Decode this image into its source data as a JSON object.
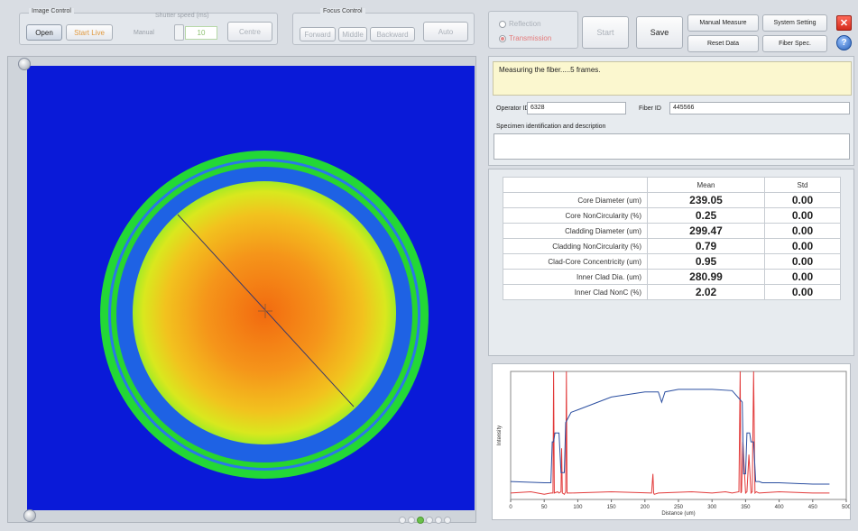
{
  "image_control": {
    "title": "Image Control",
    "shutter_label": "Shutter speed (ms)",
    "open_label": "Open",
    "start_live_label": "Start Live",
    "manual_label": "Manual",
    "shutter_value": "10",
    "centre_label": "Centre"
  },
  "focus_control": {
    "title": "Focus Control",
    "forward_label": "Forward",
    "middle_label": "Middle",
    "backward_label": "Backward",
    "auto_label": "Auto"
  },
  "mode": {
    "reflection_label": "Reflection",
    "transmission_label": "Transmission",
    "selected": "Transmission"
  },
  "actions": {
    "start_label": "Start",
    "save_label": "Save",
    "manual_measure_label": "Manual Measure",
    "system_setting_label": "System Setting",
    "reset_data_label": "Reset Data",
    "fiber_spec_label": "Fiber Spec.",
    "close_symbol": "✕",
    "help_symbol": "?"
  },
  "status": {
    "message": "Measuring the fiber.....5 frames."
  },
  "ids": {
    "operator_label": "Operator ID",
    "operator_value": "6328",
    "fiber_label": "Fiber ID",
    "fiber_value": "445566",
    "specimen_label": "Specimen identification and description",
    "specimen_value": ""
  },
  "results": {
    "headers": [
      "Mean",
      "Std"
    ],
    "rows": [
      {
        "name": "Core Diameter (um)",
        "mean": "239.05",
        "std": "0.00"
      },
      {
        "name": "Core NonCircularity (%)",
        "mean": "0.25",
        "std": "0.00"
      },
      {
        "name": "Cladding Diameter (um)",
        "mean": "299.47",
        "std": "0.00"
      },
      {
        "name": "Cladding NonCircularity (%)",
        "mean": "0.79",
        "std": "0.00"
      },
      {
        "name": "Clad-Core Concentricity (um)",
        "mean": "0.95",
        "std": "0.00"
      },
      {
        "name": "Inner Clad Dia. (um)",
        "mean": "280.99",
        "std": "0.00"
      },
      {
        "name": "Inner Clad NonC (%)",
        "mean": "2.02",
        "std": "0.00"
      }
    ]
  },
  "colors": {
    "background": "#0a1ad8",
    "outer_ring": "#23d836",
    "core_center": "#f26a10",
    "profile_blue": "#2a4ea0",
    "profile_red": "#e23b3b"
  },
  "pager": {
    "count": 6,
    "active": 2
  },
  "chart_data": {
    "type": "line",
    "xlabel": "Distance (um)",
    "ylabel": "Intensity",
    "xlim": [
      0,
      500
    ],
    "ylim": [
      0,
      1
    ],
    "x_ticks": [
      0,
      50,
      100,
      150,
      200,
      250,
      300,
      350,
      400,
      450,
      500
    ],
    "series": [
      {
        "color": "#2a4ea0",
        "x": [
          0,
          50,
          60,
          62,
          64,
          66,
          72,
          75,
          78,
          80,
          82,
          90,
          100,
          150,
          200,
          220,
          225,
          230,
          250,
          300,
          330,
          345,
          347,
          350,
          352,
          356,
          358,
          362,
          365,
          370,
          375,
          400,
          450,
          475
        ],
        "y": [
          0.14,
          0.13,
          0.13,
          0.45,
          0.45,
          0.52,
          0.52,
          0.21,
          0.21,
          0.21,
          0.6,
          0.68,
          0.7,
          0.8,
          0.84,
          0.84,
          0.76,
          0.84,
          0.86,
          0.86,
          0.85,
          0.76,
          0.2,
          0.2,
          0.52,
          0.52,
          0.45,
          0.45,
          0.14,
          0.14,
          0.13,
          0.13,
          0.12,
          0.12
        ]
      },
      {
        "color": "#e23b3b",
        "x": [
          0,
          30,
          50,
          60,
          63,
          64,
          65,
          70,
          72,
          75,
          76,
          77,
          80,
          82,
          83,
          84,
          90,
          150,
          210,
          212,
          213,
          214,
          220,
          270,
          300,
          320,
          330,
          340,
          342,
          343,
          344,
          346,
          350,
          352,
          355,
          358,
          360,
          362,
          364,
          366,
          370,
          400,
          450,
          475
        ],
        "y": [
          0.05,
          0.06,
          0.04,
          0.05,
          0.05,
          1.0,
          0.05,
          0.06,
          0.05,
          0.06,
          0.4,
          0.05,
          0.04,
          0.06,
          1.0,
          0.05,
          0.05,
          0.06,
          0.05,
          0.2,
          0.05,
          0.04,
          0.05,
          0.06,
          0.05,
          0.06,
          0.05,
          0.06,
          1.0,
          0.05,
          0.06,
          0.45,
          0.05,
          0.06,
          0.35,
          0.05,
          0.06,
          1.0,
          0.05,
          0.06,
          0.05,
          0.06,
          0.05,
          0.05
        ]
      }
    ]
  }
}
